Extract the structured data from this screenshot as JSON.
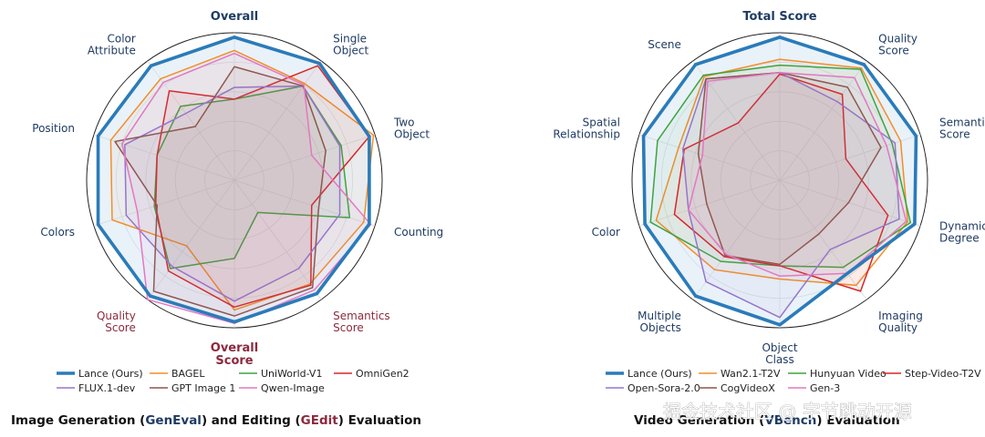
{
  "chart_data": [
    {
      "type": "radar",
      "title": "Overall",
      "bottom_title": "Overall Score",
      "axes": [
        "Overall",
        "Single Object",
        "Two Object",
        "Counting",
        "Semantics Score",
        "Overall Score",
        "Quality Score",
        "Colors",
        "Position",
        "Color Attribute"
      ],
      "axis_colors": [
        "#1f3b63",
        "#1f3b63",
        "#1f3b63",
        "#1f3b63",
        "#8b2a3e",
        "#8b2a3e",
        "#8b2a3e",
        "#1f3b63",
        "#1f3b63",
        "#1f3b63"
      ],
      "rlim": [
        0,
        1
      ],
      "grid": true,
      "series": [
        {
          "name": "Lance (Ours)",
          "color": "#2b7bb9",
          "width": 3.6,
          "fill": true,
          "values": [
            0.97,
            0.98,
            0.96,
            0.96,
            0.95,
            0.96,
            0.97,
            0.97,
            0.97,
            0.96
          ]
        },
        {
          "name": "BAGEL",
          "color": "#f28e2b",
          "width": 1.5,
          "values": [
            0.88,
            0.81,
            0.99,
            0.92,
            0.87,
            0.88,
            0.55,
            0.87,
            0.88,
            0.85
          ]
        },
        {
          "name": "UniWorld-V1",
          "color": "#3fa33f",
          "width": 1.5,
          "values": [
            0.55,
            0.79,
            0.76,
            0.82,
            0.27,
            0.53,
            0.74,
            0.57,
            0.55,
            0.62
          ]
        },
        {
          "name": "OmniGen2",
          "color": "#d62728",
          "width": 1.5,
          "values": [
            0.55,
            0.96,
            0.96,
            0.55,
            0.88,
            0.86,
            0.76,
            0.56,
            0.55,
            0.75
          ]
        },
        {
          "name": "FLUX.1-dev",
          "color": "#9575cd",
          "width": 1.5,
          "values": [
            0.63,
            0.79,
            0.75,
            0.75,
            0.74,
            0.82,
            0.72,
            0.77,
            0.78,
            0.56
          ]
        },
        {
          "name": "GPT Image 1",
          "color": "#8c564b",
          "width": 1.5,
          "values": [
            0.77,
            0.79,
            0.65,
            0.6,
            0.9,
            0.92,
            0.93,
            0.55,
            0.85,
            0.45
          ]
        },
        {
          "name": "Qwen-Image",
          "color": "#e377c2",
          "width": 1.5,
          "values": [
            0.86,
            0.8,
            0.55,
            0.97,
            0.92,
            0.97,
            1.0,
            0.69,
            0.8,
            0.82
          ]
        }
      ],
      "legend": {
        "placement": "bottom",
        "columns": 4
      }
    },
    {
      "type": "radar",
      "title": "Total Score",
      "axes": [
        "Total Score",
        "Quality Score",
        "Semantic Score",
        "Dynamic Degree",
        "Imaging Quality",
        "Object Class",
        "Multiple Objects",
        "Color",
        "Spatial Relationship",
        "Scene"
      ],
      "axis_colors": [
        "#1f3b63",
        "#1f3b63",
        "#1f3b63",
        "#1f3b63",
        "#1f3b63",
        "#1f3b63",
        "#1f3b63",
        "#1f3b63",
        "#1f3b63",
        "#1f3b63"
      ],
      "rlim": [
        0,
        1
      ],
      "grid": true,
      "series": [
        {
          "name": "Lance (Ours)",
          "color": "#2b7bb9",
          "width": 3.6,
          "fill": true,
          "values": [
            0.97,
            0.97,
            0.97,
            0.96,
            0.78,
            0.98,
            0.97,
            0.96,
            0.97,
            0.97
          ]
        },
        {
          "name": "Wan2.1-T2V",
          "color": "#f28e2b",
          "width": 1.5,
          "values": [
            0.82,
            0.94,
            0.86,
            0.91,
            0.88,
            0.67,
            0.75,
            0.88,
            0.72,
            0.87
          ]
        },
        {
          "name": "Hunyuan Video",
          "color": "#3fa33f",
          "width": 1.5,
          "values": [
            0.78,
            0.93,
            0.8,
            0.93,
            0.73,
            0.58,
            0.68,
            0.92,
            0.87,
            0.88
          ]
        },
        {
          "name": "Step-Video-T2V",
          "color": "#d62728",
          "width": 1.5,
          "values": [
            0.72,
            0.72,
            0.47,
            0.77,
            0.93,
            0.58,
            0.64,
            0.75,
            0.68,
            0.48
          ]
        },
        {
          "name": "Open-Sora-2.0",
          "color": "#9575cd",
          "width": 1.5,
          "values": [
            0.73,
            0.66,
            0.82,
            0.85,
            0.58,
            0.93,
            0.85,
            0.65,
            0.69,
            0.85
          ]
        },
        {
          "name": "CogVideoX",
          "color": "#8c564b",
          "width": 1.5,
          "values": [
            0.73,
            0.78,
            0.72,
            0.49,
            0.45,
            0.57,
            0.63,
            0.52,
            0.58,
            0.85
          ]
        },
        {
          "name": "Gen-3",
          "color": "#e377c2",
          "width": 1.5,
          "values": [
            0.73,
            0.86,
            0.76,
            0.9,
            0.78,
            0.65,
            0.62,
            0.65,
            0.55,
            0.83
          ]
        }
      ],
      "legend": {
        "placement": "bottom",
        "columns": 4
      }
    }
  ],
  "captions": {
    "left": [
      "Image Generation (",
      "GenEval",
      ") and Editing (",
      "GEdit",
      ") Evaluation"
    ],
    "right": [
      "Video Generation (",
      "VBench",
      ") Evaluation"
    ]
  },
  "watermark": "掘金技术社区 @ 字节跳动开源",
  "colors": {
    "navy": "#1f3b63",
    "maroon": "#8b2a3e",
    "accent": "#2b7bb9"
  }
}
